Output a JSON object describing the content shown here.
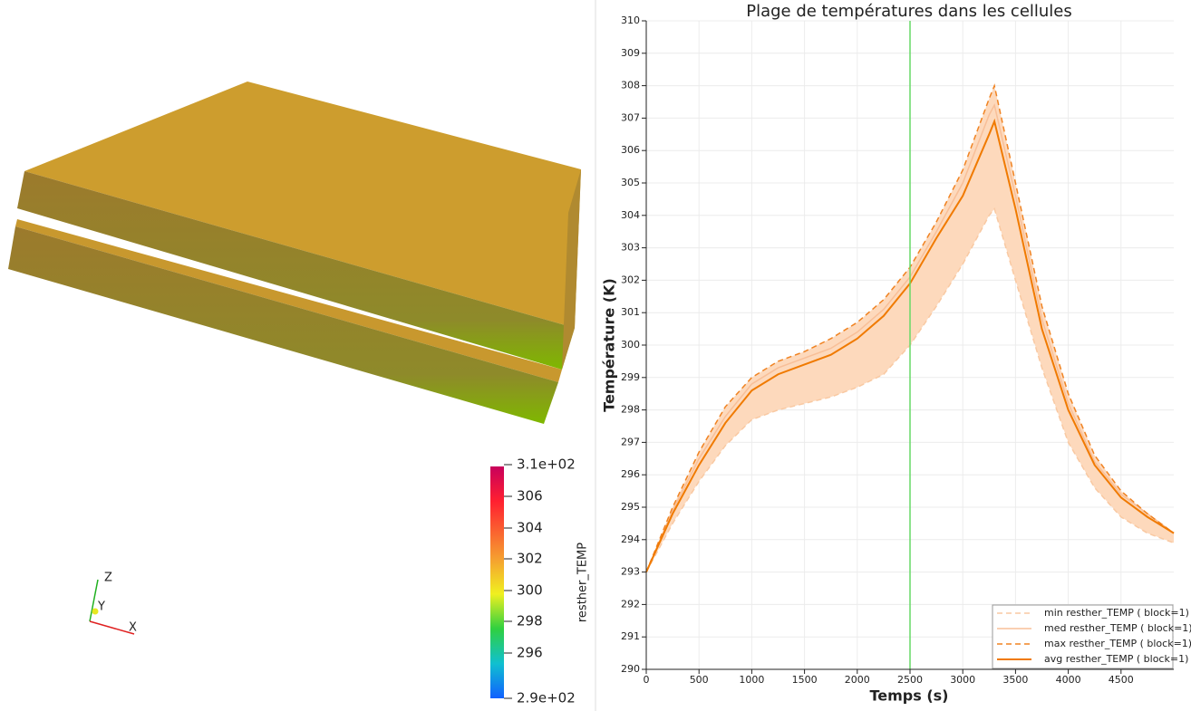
{
  "render_view": {
    "color_legend": {
      "title": "resther_TEMP",
      "labels": [
        "3.1e+02",
        "306",
        "304",
        "302",
        "300",
        "298",
        "296",
        "2.9e+02"
      ]
    },
    "axes_labels": [
      "Z",
      "Y",
      "X"
    ]
  },
  "chart_data": {
    "type": "line",
    "title": "Plage de températures dans les cellules",
    "x_label": "Temps (s)",
    "y_label": "Température (K)",
    "x": [
      0,
      250,
      500,
      750,
      1000,
      1250,
      1500,
      1750,
      2000,
      2250,
      2500,
      2750,
      3000,
      3250,
      3300,
      3500,
      3750,
      4000,
      4250,
      4500,
      4750,
      5000
    ],
    "series": [
      {
        "name": "min resther_TEMP ( block=1)",
        "color": "#f9c9a2",
        "dashed": true,
        "values": [
          293,
          294.5,
          295.8,
          296.9,
          297.7,
          298.0,
          298.2,
          298.4,
          298.7,
          299.1,
          300.0,
          301.2,
          302.5,
          304.0,
          304.2,
          302.0,
          299.3,
          297.0,
          295.6,
          294.7,
          294.2,
          293.9
        ]
      },
      {
        "name": "med resther_TEMP ( block=1)",
        "color": "#f8bf98",
        "dashed": false,
        "values": [
          293,
          294.9,
          296.5,
          297.8,
          298.8,
          299.3,
          299.6,
          299.9,
          300.4,
          301.1,
          302.1,
          303.5,
          305.0,
          307.1,
          307.4,
          304.6,
          300.8,
          298.2,
          296.4,
          295.4,
          294.8,
          294.2
        ]
      },
      {
        "name": "max resther_TEMP ( block=1)",
        "color": "#f08322",
        "dashed": true,
        "values": [
          293,
          295.0,
          296.7,
          298.1,
          299.0,
          299.5,
          299.8,
          300.2,
          300.7,
          301.4,
          302.4,
          303.8,
          305.4,
          307.6,
          308.0,
          305.0,
          301.2,
          298.5,
          296.6,
          295.5,
          294.8,
          294.2
        ]
      },
      {
        "name": "avg resther_TEMP ( block=1)",
        "color": "#f07a00",
        "dashed": false,
        "values": [
          293,
          294.8,
          296.3,
          297.6,
          298.6,
          299.1,
          299.4,
          299.7,
          300.2,
          300.9,
          301.9,
          303.3,
          304.6,
          306.5,
          306.9,
          304.2,
          300.5,
          298.0,
          296.3,
          295.3,
          294.7,
          294.2
        ]
      }
    ],
    "band_color": "#fdd9bc",
    "cursor_x": 2500,
    "cursor_color": "#66d966",
    "xlim": [
      0,
      5000
    ],
    "xticks": [
      0,
      500,
      1000,
      1500,
      2000,
      2500,
      3000,
      3500,
      4000,
      4500
    ],
    "ylim": [
      290,
      310
    ],
    "yticks": [
      290,
      291,
      292,
      293,
      294,
      295,
      296,
      297,
      298,
      299,
      300,
      301,
      302,
      303,
      304,
      305,
      306,
      307,
      308,
      309,
      310
    ],
    "grid": true,
    "legend": "lower-right"
  }
}
